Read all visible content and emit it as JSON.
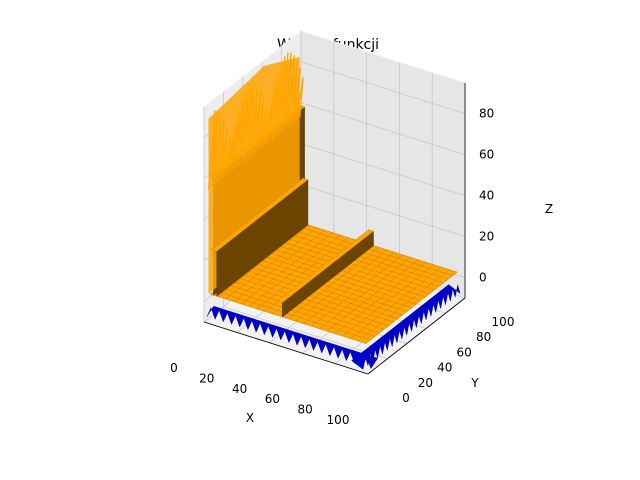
{
  "chart_data": {
    "type": "surface3d",
    "title": "Wykres funkcji",
    "xlabel": "X",
    "ylabel": "Y",
    "zlabel": "Z",
    "xlim": [
      0,
      100
    ],
    "ylim": [
      0,
      100
    ],
    "zlim": [
      -10,
      95
    ],
    "x_ticks": [
      "0",
      "20",
      "40",
      "60",
      "80",
      "100"
    ],
    "y_ticks": [
      "0",
      "20",
      "40",
      "60",
      "80",
      "100"
    ],
    "z_ticks": [
      "0",
      "20",
      "40",
      "60",
      "80"
    ],
    "grid": true,
    "series": [
      {
        "color": "#ffa500",
        "surface": "upper",
        "ridges": [
          {
            "x": [
              1,
              4
            ],
            "z_max": 93,
            "z_mean": 60
          },
          {
            "x": [
              3,
              6
            ],
            "z_max": 30,
            "z_mean": 25
          },
          {
            "x": [
              43,
              46
            ],
            "z_max": 10,
            "z_mean": 10
          }
        ],
        "base_z": 3
      },
      {
        "color": "#0000cc",
        "surface": "lower",
        "base_z": -6
      }
    ]
  }
}
